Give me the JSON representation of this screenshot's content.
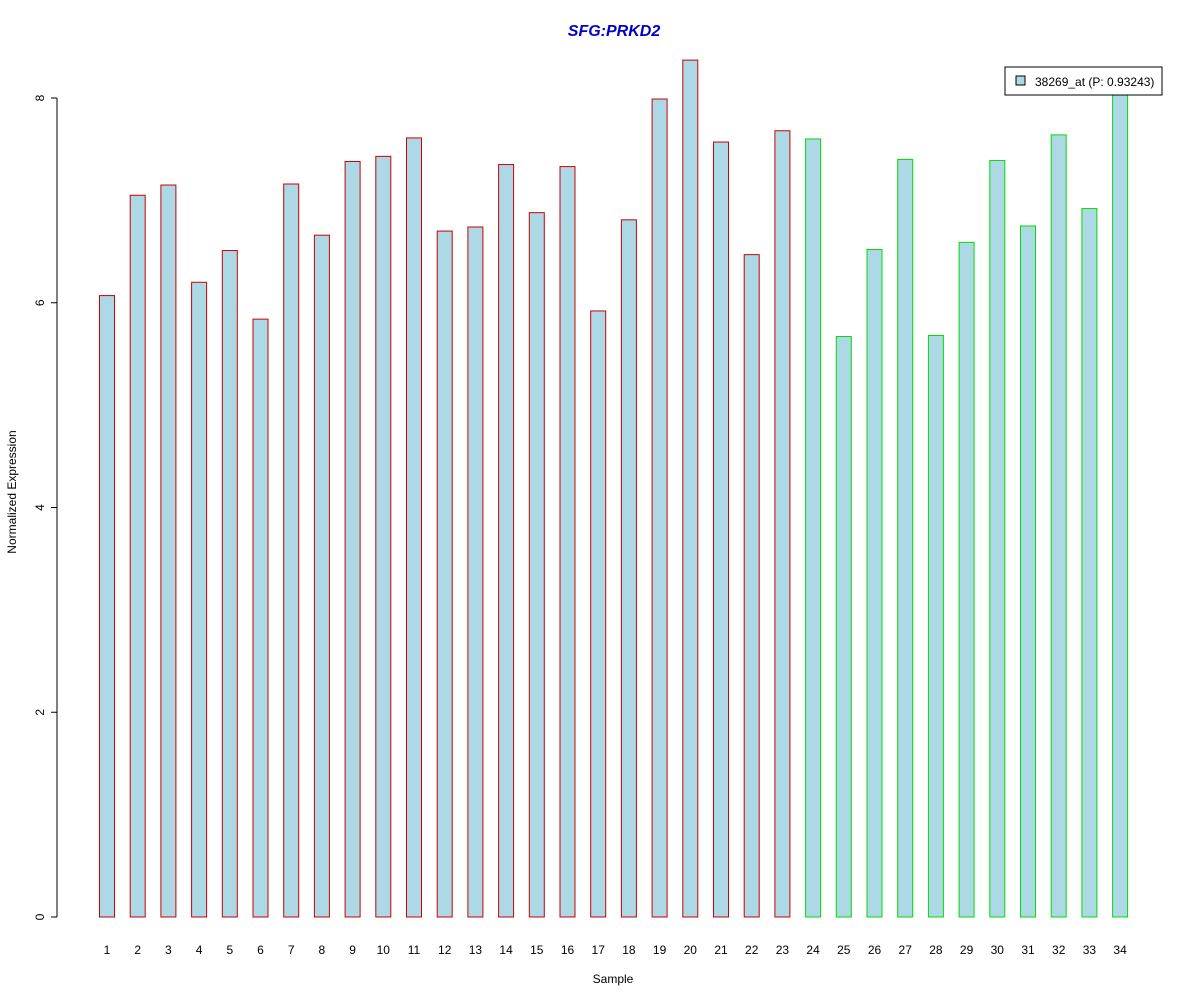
{
  "chart_data": {
    "type": "bar",
    "title": "SFG:PRKD2",
    "title_color": "#0000cc",
    "xlabel": "Sample",
    "ylabel": "Normalized Expression",
    "ylim": [
      0,
      8.3
    ],
    "yticks": [
      0,
      2,
      4,
      6,
      8
    ],
    "ytick_labels": [
      "0",
      "2",
      "4",
      "6",
      "8"
    ],
    "grid": false,
    "legend_position": "top-right",
    "bar_fill": "#add8e6",
    "categories": [
      "1",
      "2",
      "3",
      "4",
      "5",
      "6",
      "7",
      "8",
      "9",
      "10",
      "11",
      "12",
      "13",
      "14",
      "15",
      "16",
      "17",
      "18",
      "19",
      "20",
      "21",
      "22",
      "23",
      "24",
      "25",
      "26",
      "27",
      "28",
      "29",
      "30",
      "31",
      "32",
      "33",
      "34"
    ],
    "series": [
      {
        "name": "38269_at (P: 0.93243)",
        "values": [
          6.07,
          7.05,
          7.15,
          6.2,
          6.51,
          5.84,
          7.16,
          6.66,
          7.38,
          7.43,
          7.61,
          6.7,
          6.74,
          7.35,
          6.88,
          7.33,
          5.92,
          6.81,
          7.99,
          8.37,
          7.57,
          6.47,
          7.68,
          7.6,
          5.67,
          6.52,
          7.4,
          5.68,
          6.59,
          7.39,
          6.75,
          7.64,
          6.92,
          8.1
        ]
      }
    ],
    "group_colors": [
      "#cc0000",
      "#00dd00"
    ],
    "groups": [
      0,
      0,
      0,
      0,
      0,
      0,
      0,
      0,
      0,
      0,
      0,
      0,
      0,
      0,
      0,
      0,
      0,
      0,
      0,
      0,
      0,
      0,
      0,
      1,
      1,
      1,
      1,
      1,
      1,
      1,
      1,
      1,
      1,
      1
    ]
  }
}
